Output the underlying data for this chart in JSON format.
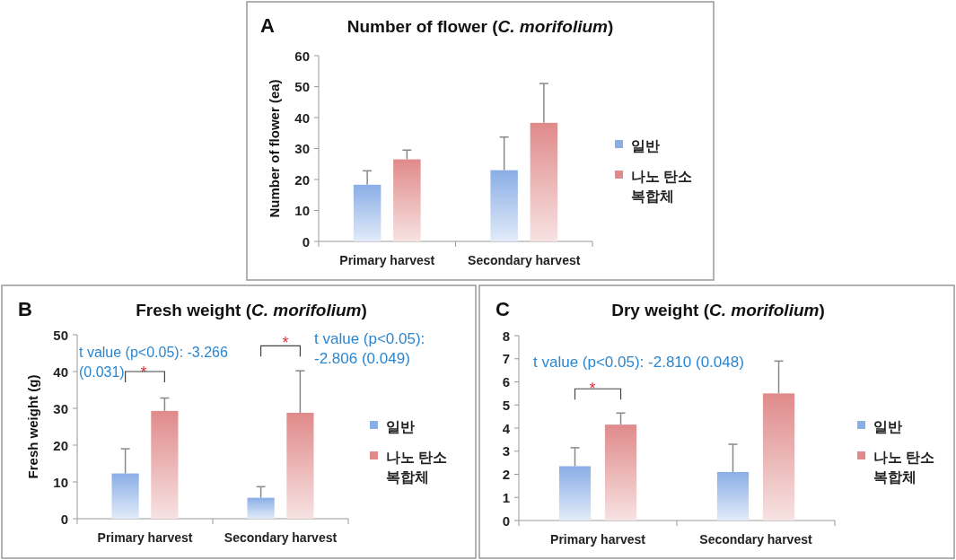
{
  "chart_data": [
    {
      "type": "bar",
      "title": "Number of flower (*C. morifolium*)",
      "ylabel": "Number of flower (ea)",
      "categories": [
        "Primary harvest",
        "Secondary harvest"
      ],
      "series": [
        {
          "name": "일반",
          "color": "#8aaee6",
          "values": [
            18.3,
            23
          ],
          "errors": [
            [
              18.3,
              22.8
            ],
            [
              23,
              33.7
            ]
          ]
        },
        {
          "name": "나노 탄소 복합체",
          "color": "#e08a8a",
          "values": [
            26.5,
            38.3
          ],
          "errors": [
            [
              26.5,
              29.5
            ],
            [
              38.3,
              51
            ]
          ]
        }
      ],
      "ylim": [
        0,
        60
      ],
      "yticks": [
        0,
        10,
        20,
        30,
        40,
        50,
        60
      ],
      "legend": "right",
      "grid": false,
      "annotations": [
        "A"
      ]
    },
    {
      "type": "bar",
      "title": "Fresh weight (*C. morifolium*)",
      "ylabel": "Fresh weight (g)",
      "categories": [
        "Primary harvest",
        "Secondary harvest"
      ],
      "series": [
        {
          "name": "일반",
          "color": "#8aaee6",
          "values": [
            12.3,
            5.7
          ],
          "errors": [
            [
              12.3,
              19
            ],
            [
              5.7,
              8.7
            ]
          ]
        },
        {
          "name": "나노 탄소 복합체",
          "color": "#e08a8a",
          "values": [
            29.3,
            28.8
          ],
          "errors": [
            [
              29.3,
              32.8
            ],
            [
              28.8,
              40.2
            ]
          ]
        }
      ],
      "ylim": [
        0,
        50
      ],
      "yticks": [
        0,
        10,
        20,
        30,
        40,
        50
      ],
      "legend": "right",
      "grid": false,
      "annotations": [
        "B",
        "t value (p<0.05): -3.266 (0.031)",
        "t value (p<0.05): -2.806 (0.049)",
        "*",
        "*"
      ]
    },
    {
      "type": "bar",
      "title": "Dry weight (*C. morifolium*)",
      "categories": [
        "Primary harvest",
        "Secondary harvest"
      ],
      "series": [
        {
          "name": "일반",
          "color": "#8aaee6",
          "values": [
            2.35,
            2.1
          ],
          "errors": [
            [
              2.35,
              3.15
            ],
            [
              2.1,
              3.3
            ]
          ]
        },
        {
          "name": "나노 탄소 복합체",
          "color": "#e08a8a",
          "values": [
            4.15,
            5.5
          ],
          "errors": [
            [
              4.15,
              4.65
            ],
            [
              5.5,
              6.9
            ]
          ]
        }
      ],
      "ylim": [
        0,
        8
      ],
      "yticks": [
        0,
        1,
        2,
        3,
        4,
        5,
        6,
        7,
        8
      ],
      "legend": "right",
      "grid": false,
      "annotations": [
        "C",
        "t value (p<0.05): -2.810 (0.048)",
        "*"
      ]
    }
  ]
}
